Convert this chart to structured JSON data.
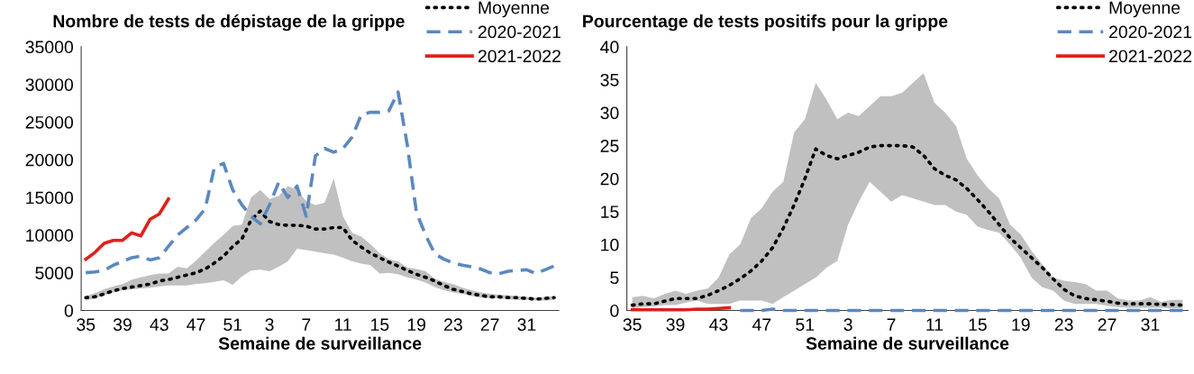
{
  "chart_data": [
    {
      "type": "line",
      "title": "Nombre de tests de dépistage de la grippe",
      "xlabel": "Semaine de surveillance",
      "categories": [
        "35",
        null,
        null,
        null,
        "39",
        null,
        null,
        null,
        "43",
        null,
        null,
        null,
        "47",
        null,
        null,
        null,
        "51",
        null,
        null,
        null,
        "3",
        null,
        null,
        null,
        "7",
        null,
        null,
        null,
        "11",
        null,
        null,
        null,
        "15",
        null,
        null,
        null,
        "19",
        null,
        null,
        null,
        "23",
        null,
        null,
        null,
        "27",
        null,
        null,
        null,
        "31",
        null,
        null,
        null
      ],
      "ylim": [
        0,
        35000
      ],
      "yticks": [
        0,
        5000,
        10000,
        15000,
        20000,
        25000,
        30000,
        35000
      ],
      "grid": false,
      "legend": "top right",
      "marker": "none",
      "series": [
        {
          "name": "Moyenne",
          "color": "#000000",
          "line_style": "dotted",
          "values": [
            1700,
            1800,
            2200,
            2600,
            2900,
            3100,
            3300,
            3500,
            3900,
            4100,
            4400,
            4700,
            5000,
            5500,
            6300,
            7200,
            8500,
            9500,
            12000,
            13200,
            11800,
            11400,
            11300,
            11300,
            11200,
            10800,
            10800,
            11000,
            11000,
            9300,
            8400,
            7600,
            7000,
            6400,
            5900,
            5300,
            4800,
            4400,
            3900,
            3300,
            2800,
            2500,
            2200,
            2000,
            1800,
            1800,
            1700,
            1700,
            1600,
            1500,
            1600,
            1700
          ],
          "lower": [
            1300,
            1600,
            2000,
            2400,
            2700,
            2800,
            2900,
            3000,
            3200,
            3300,
            3300,
            3300,
            3500,
            3600,
            3800,
            4000,
            3400,
            4500,
            5300,
            5400,
            5200,
            5800,
            6500,
            8200,
            8000,
            7800,
            7600,
            7400,
            7000,
            6500,
            6200,
            6000,
            4900,
            5000,
            4800,
            4400,
            4100,
            3700,
            3100,
            2700,
            2400,
            2200,
            1900,
            1700,
            1600,
            1600,
            1500,
            1400,
            1400,
            1300,
            1300,
            1400
          ],
          "upper": [
            1900,
            2300,
            2800,
            3200,
            3500,
            4100,
            4400,
            4700,
            4900,
            4900,
            5800,
            5600,
            6600,
            7800,
            9000,
            10000,
            11200,
            11400,
            15000,
            16000,
            14800,
            15200,
            16500,
            16000,
            14500,
            14000,
            14300,
            17500,
            12500,
            10300,
            9800,
            8800,
            7600,
            6800,
            6500,
            5700,
            5500,
            5200,
            4200,
            3800,
            3500,
            3000,
            2700,
            2400,
            2200,
            2100,
            2000,
            1900,
            1800,
            1700,
            1800,
            1900
          ]
        },
        {
          "name": "2020-2021",
          "color": "#5b88bf",
          "line_style": "dashed",
          "values": [
            5000,
            5100,
            5300,
            6000,
            6500,
            7000,
            7200,
            6700,
            7000,
            8500,
            10000,
            11000,
            12000,
            13500,
            19000,
            19500,
            16000,
            14000,
            12500,
            11500,
            14000,
            17000,
            15000,
            16500,
            12500,
            20500,
            21500,
            21000,
            21500,
            23000,
            26000,
            26300,
            26300,
            26500,
            29000,
            22000,
            13000,
            10000,
            7500,
            6800,
            6300,
            6000,
            5800,
            5500,
            5000,
            4900,
            5200,
            5300,
            5400,
            4900,
            5400,
            5900
          ]
        },
        {
          "name": "2021-2022",
          "color": "#e0201b",
          "line_style": "solid",
          "values": [
            6800,
            7700,
            8900,
            9300,
            9300,
            10300,
            9900,
            12100,
            12800,
            14800,
            null,
            null,
            null,
            null,
            null,
            null,
            null,
            null,
            null,
            null,
            null,
            null,
            null,
            null,
            null,
            null,
            null,
            null,
            null,
            null,
            null,
            null,
            null,
            null,
            null,
            null,
            null,
            null,
            null,
            null,
            null,
            null,
            null,
            null,
            null,
            null,
            null,
            null,
            null,
            null,
            null,
            null
          ]
        }
      ]
    },
    {
      "type": "line",
      "title": "Pourcentage de tests positifs pour la grippe",
      "xlabel": "Semaine de surveillance",
      "categories": [
        "35",
        null,
        null,
        null,
        "39",
        null,
        null,
        null,
        "43",
        null,
        null,
        null,
        "47",
        null,
        null,
        null,
        "51",
        null,
        null,
        null,
        "3",
        null,
        null,
        null,
        "7",
        null,
        null,
        null,
        "11",
        null,
        null,
        null,
        "15",
        null,
        null,
        null,
        "19",
        null,
        null,
        null,
        "23",
        null,
        null,
        null,
        "27",
        null,
        null,
        null,
        "31",
        null,
        null,
        null
      ],
      "ylim": [
        0,
        40
      ],
      "yticks": [
        0,
        5,
        10,
        15,
        20,
        25,
        30,
        35,
        40
      ],
      "grid": false,
      "legend": "top right",
      "marker": "none",
      "series": [
        {
          "name": "Moyenne",
          "color": "#000000",
          "line_style": "dotted",
          "values": [
            0.8,
            1.0,
            1.0,
            1.4,
            1.8,
            1.8,
            1.8,
            2.3,
            3.0,
            3.8,
            4.8,
            6.0,
            7.5,
            9.5,
            12.5,
            16,
            20,
            24.5,
            23.5,
            23,
            23.5,
            24,
            24.8,
            25,
            25,
            25,
            24.8,
            23.5,
            21.5,
            20.5,
            19.8,
            18.5,
            16.8,
            15,
            13,
            11,
            9.5,
            8,
            6.5,
            4.8,
            3.2,
            2.2,
            1.8,
            1.6,
            1.4,
            1.1,
            1.0,
            1.0,
            1.0,
            0.9,
            0.9,
            0.8
          ],
          "lower": [
            0.3,
            0.5,
            0.6,
            0.8,
            0.8,
            1.2,
            1.5,
            1.0,
            1.0,
            1.0,
            1.5,
            1.5,
            1.5,
            1.0,
            2.0,
            3.0,
            4.0,
            5.0,
            6.5,
            7.5,
            13,
            16.5,
            19.5,
            18,
            16.5,
            17.5,
            17,
            16.5,
            16,
            16,
            15,
            14.5,
            12.7,
            12.2,
            11.8,
            10,
            8,
            5,
            3.5,
            3,
            1.5,
            1,
            1,
            1,
            0.7,
            0.5,
            0.4,
            0.4,
            0.4,
            0.4,
            0.3,
            0.3
          ],
          "upper": [
            2.0,
            2.2,
            1.8,
            2.5,
            3.0,
            2.5,
            3.0,
            3.3,
            5.0,
            8.5,
            10,
            14,
            15.5,
            18,
            19.5,
            27,
            29,
            34.5,
            32,
            29,
            30,
            29.5,
            31,
            32.5,
            32.5,
            33,
            34.5,
            36,
            31.5,
            30,
            28,
            23,
            20.5,
            18.5,
            17,
            13,
            11.5,
            9,
            7,
            5,
            4.5,
            4.3,
            4,
            3,
            3,
            1.8,
            1.5,
            1.5,
            2,
            1.3,
            1.6,
            1.6
          ]
        },
        {
          "name": "2020-2021",
          "color": "#5b88bf",
          "line_style": "dashed",
          "values": [
            null,
            null,
            null,
            null,
            null,
            null,
            null,
            null,
            null,
            null,
            0,
            0,
            0,
            0.2,
            0,
            0,
            0,
            0,
            0,
            0,
            0,
            0,
            0,
            0,
            0,
            0,
            0,
            0,
            0,
            0,
            0,
            0,
            0,
            0,
            0,
            0,
            0,
            0,
            0,
            0,
            0,
            0,
            0,
            0,
            0,
            0,
            0,
            0,
            0,
            0,
            0,
            0
          ]
        },
        {
          "name": "2021-2022",
          "color": "#e0201b",
          "line_style": "solid",
          "values": [
            0.1,
            0.1,
            0.1,
            0.1,
            0.1,
            0.1,
            0.2,
            0.2,
            0.3,
            0.4,
            null,
            null,
            null,
            null,
            null,
            null,
            null,
            null,
            null,
            null,
            null,
            null,
            null,
            null,
            null,
            null,
            null,
            null,
            null,
            null,
            null,
            null,
            null,
            null,
            null,
            null,
            null,
            null,
            null,
            null,
            null,
            null,
            null,
            null,
            null,
            null,
            null,
            null,
            null,
            null,
            null,
            null
          ]
        }
      ]
    }
  ]
}
